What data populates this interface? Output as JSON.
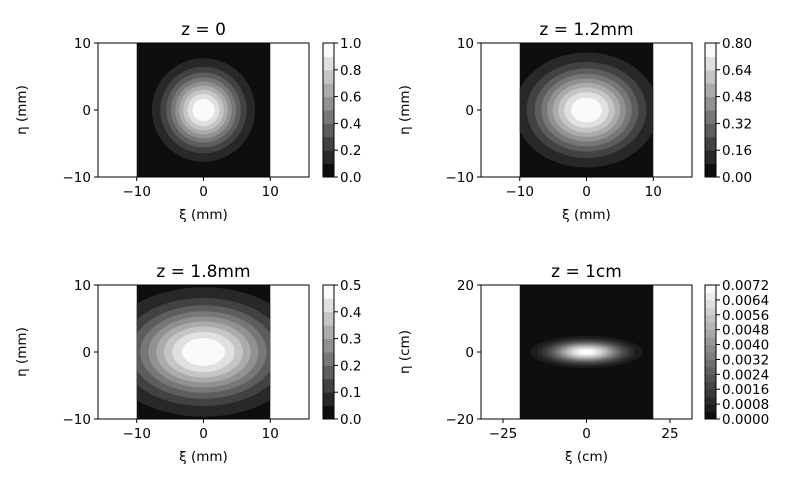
{
  "chart_data": [
    {
      "type": "heatmap",
      "title": "z = 0",
      "xlabel": "ξ (mm)",
      "ylabel": "η (mm)",
      "xlim": [
        -15.8,
        15.8
      ],
      "ylim": [
        -10,
        10
      ],
      "xticks": [
        "−10",
        "0",
        "10"
      ],
      "yticks": [
        "−10",
        "0",
        "10"
      ],
      "field_extent": [
        -10,
        10
      ],
      "beam": {
        "center": [
          0,
          0
        ],
        "sigma_x": 3.6,
        "sigma_y": 3.6,
        "peak": 1.0
      },
      "colormap": "gray",
      "levels": 10,
      "colorbar": {
        "ticks": [
          "0.0",
          "0.2",
          "0.4",
          "0.6",
          "0.8",
          "1.0"
        ],
        "range": [
          0,
          1.0
        ]
      }
    },
    {
      "type": "heatmap",
      "title": "z = 1.2mm",
      "xlabel": "ξ (mm)",
      "ylabel": "η (mm)",
      "xlim": [
        -15.8,
        15.8
      ],
      "ylim": [
        -10,
        10
      ],
      "xticks": [
        "−10",
        "0",
        "10"
      ],
      "yticks": [
        "−10",
        "0",
        "10"
      ],
      "field_extent": [
        -10,
        10
      ],
      "beam": {
        "center": [
          0,
          0
        ],
        "sigma_x": 5.0,
        "sigma_y": 4.0,
        "peak": 0.8
      },
      "colormap": "gray",
      "levels": 10,
      "colorbar": {
        "ticks": [
          "0.00",
          "0.16",
          "0.32",
          "0.48",
          "0.64",
          "0.80"
        ],
        "range": [
          0,
          0.8
        ]
      }
    },
    {
      "type": "heatmap",
      "title": "z = 1.8mm",
      "xlabel": "ξ (mm)",
      "ylabel": "η (mm)",
      "xlim": [
        -15.8,
        15.8
      ],
      "ylim": [
        -10,
        10
      ],
      "xticks": [
        "−10",
        "0",
        "10"
      ],
      "yticks": [
        "−10",
        "0",
        "10"
      ],
      "field_extent": [
        -10,
        10
      ],
      "beam": {
        "center": [
          0,
          0
        ],
        "sigma_x": 7.0,
        "sigma_y": 4.5,
        "peak": 0.5
      },
      "colormap": "gray",
      "levels": 10,
      "colorbar": {
        "ticks": [
          "0.0",
          "0.1",
          "0.2",
          "0.3",
          "0.4",
          "0.5"
        ],
        "range": [
          0,
          0.5
        ]
      }
    },
    {
      "type": "heatmap",
      "title": "z = 1cm",
      "xlabel": "ξ (cm)",
      "ylabel": "η (cm)",
      "xlim": [
        -31.6,
        31.6
      ],
      "ylim": [
        -20,
        20
      ],
      "xticks": [
        "−25",
        "0",
        "25"
      ],
      "yticks": [
        "−20",
        "0",
        "20"
      ],
      "field_extent": [
        -20,
        20
      ],
      "beam": {
        "center": [
          0,
          0
        ],
        "sigma_x": 7.0,
        "sigma_y": 2.0,
        "peak": 0.0072
      },
      "colormap": "gray",
      "levels": 18,
      "colorbar": {
        "ticks": [
          "0.0000",
          "0.0008",
          "0.0016",
          "0.0024",
          "0.0032",
          "0.0040",
          "0.0048",
          "0.0056",
          "0.0064",
          "0.0072"
        ],
        "range": [
          0,
          0.0072
        ]
      }
    }
  ]
}
